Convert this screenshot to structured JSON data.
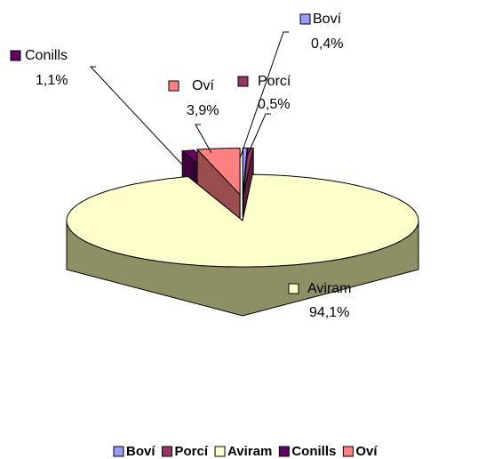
{
  "chart_data": {
    "type": "pie",
    "categories": [
      "Boví",
      "Porcí",
      "Aviram",
      "Conills",
      "Oví"
    ],
    "values": [
      0.4,
      0.5,
      94.1,
      1.1,
      3.9
    ],
    "value_labels": [
      "0,4%",
      "0,5%",
      "94,1%",
      "1,1%",
      "3,9%"
    ],
    "colors": [
      "#9999ff",
      "#993366",
      "#ffffcc",
      "#660066",
      "#ff8080"
    ],
    "three_d": true,
    "legend": "bottom"
  }
}
